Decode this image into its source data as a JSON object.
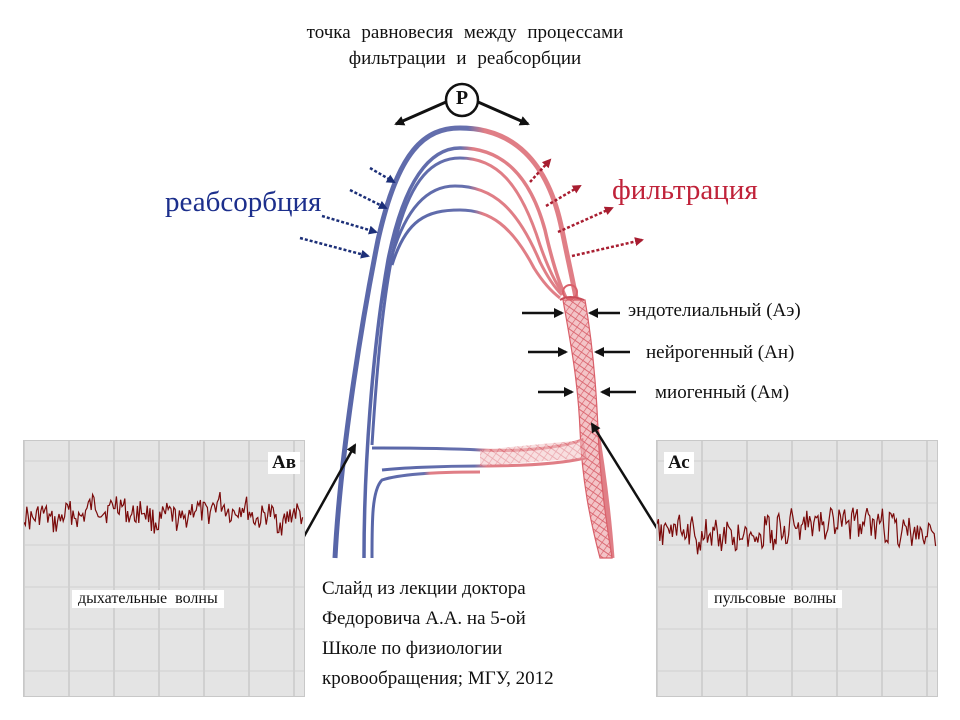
{
  "header": {
    "line1": "точка равновесия между процессами",
    "line2": "фильтрации и реабсорбции"
  },
  "point_label": "Р",
  "reabsorption_label": "реабсорбция",
  "filtration_label": "фильтрация",
  "mechanisms": [
    "эндотелиальный (Аэ)",
    "нейрогенный (Ан)",
    "миогенный (Ам)"
  ],
  "panels": {
    "left": {
      "label": "Ав",
      "wave_label": "дыхательные волны"
    },
    "right": {
      "label": "Ас",
      "wave_label": "пульсовые волны"
    }
  },
  "caption": [
    "Слайд из лекции доктора",
    "Федоровича А.А. на 5-ой",
    "Школе по физиологии",
    "кровообращения; МГУ, 2012"
  ],
  "colors": {
    "venous": "#5866a8",
    "arterial": "#e07e86",
    "reabsorption_text": "#1c2f8c",
    "filtration_text": "#c0233a",
    "signal": "#7a0a0a"
  }
}
